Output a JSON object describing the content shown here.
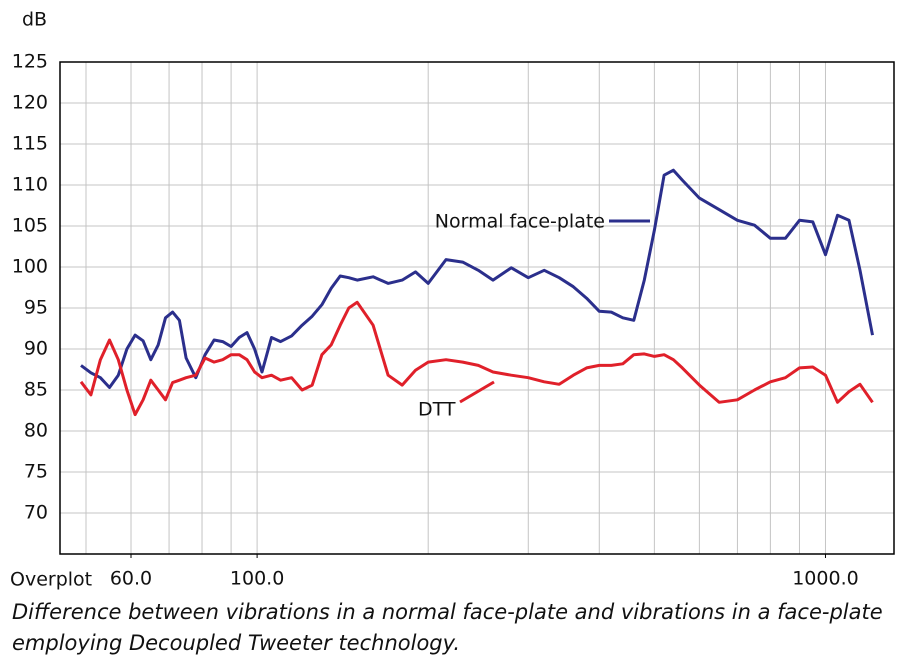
{
  "chart_data": {
    "type": "line",
    "ylabel": "dB",
    "xlabel": "Overplot",
    "caption": "Difference between vibrations in a normal face-plate and vibrations in a face-plate employing Decoupled Tweeter technology.",
    "log_x": true,
    "grid": true,
    "xlim": [
      45,
      1320
    ],
    "ylim": [
      65,
      125
    ],
    "yticks": [
      70,
      75,
      80,
      85,
      90,
      95,
      100,
      105,
      110,
      115,
      120,
      125
    ],
    "xticks": [
      {
        "value": 60,
        "label": "60.0"
      },
      {
        "value": 100,
        "label": "100.0"
      },
      {
        "value": 1000,
        "label": "1000.0"
      }
    ],
    "x_gridlines": [
      50,
      60,
      70,
      80,
      90,
      100,
      200,
      300,
      400,
      500,
      600,
      700,
      800,
      900,
      1000
    ],
    "x": [
      49,
      51,
      53,
      55,
      57,
      59,
      61,
      63,
      65,
      67,
      69,
      71,
      73,
      75,
      78,
      81,
      84,
      87,
      90,
      93,
      96,
      99,
      102,
      106,
      110,
      115,
      120,
      125,
      130,
      135,
      140,
      145,
      150,
      160,
      170,
      180,
      190,
      200,
      215,
      230,
      245,
      260,
      280,
      300,
      320,
      340,
      360,
      380,
      400,
      420,
      440,
      460,
      480,
      500,
      520,
      540,
      560,
      600,
      650,
      700,
      750,
      800,
      850,
      900,
      950,
      1000,
      1050,
      1100,
      1150,
      1210
    ],
    "series": [
      {
        "name": "Normal face-plate",
        "color": "#2b2f8c",
        "values": [
          88.0,
          87.1,
          86.5,
          85.3,
          86.8,
          90.0,
          91.7,
          91.0,
          88.7,
          90.5,
          93.8,
          94.5,
          93.5,
          88.9,
          86.5,
          89.3,
          91.1,
          90.9,
          90.3,
          91.4,
          92.0,
          90.0,
          87.2,
          91.4,
          90.9,
          91.6,
          92.9,
          94.0,
          95.4,
          97.4,
          98.9,
          98.7,
          98.4,
          98.8,
          98.0,
          98.4,
          99.4,
          98.0,
          100.9,
          100.6,
          99.6,
          98.4,
          99.9,
          98.7,
          99.6,
          98.7,
          97.6,
          96.2,
          94.6,
          94.5,
          93.8,
          93.5,
          98.4,
          104.5,
          111.2,
          111.8,
          110.6,
          108.4,
          107.0,
          105.7,
          105.1,
          103.5,
          103.5,
          105.7,
          105.5,
          101.5,
          106.3,
          105.7,
          99.6,
          91.7
        ]
      },
      {
        "name": "DTT",
        "color": "#e0202a",
        "values": [
          86.0,
          84.4,
          88.7,
          91.1,
          88.7,
          85.0,
          82.0,
          83.8,
          86.2,
          85.0,
          83.8,
          85.9,
          86.2,
          86.5,
          86.8,
          88.9,
          88.4,
          88.7,
          89.3,
          89.3,
          88.7,
          87.2,
          86.5,
          86.8,
          86.2,
          86.5,
          85.0,
          85.6,
          89.3,
          90.5,
          92.9,
          95.0,
          95.7,
          92.9,
          86.8,
          85.6,
          87.4,
          88.4,
          88.7,
          88.4,
          88.0,
          87.2,
          86.8,
          86.5,
          86.0,
          85.7,
          86.8,
          87.7,
          88.0,
          88.0,
          88.2,
          89.3,
          89.4,
          89.1,
          89.3,
          88.7,
          87.7,
          85.6,
          83.5,
          83.8,
          85.0,
          86.0,
          86.5,
          87.7,
          87.8,
          86.8,
          83.5,
          84.8,
          85.7,
          83.5
        ]
      }
    ]
  }
}
